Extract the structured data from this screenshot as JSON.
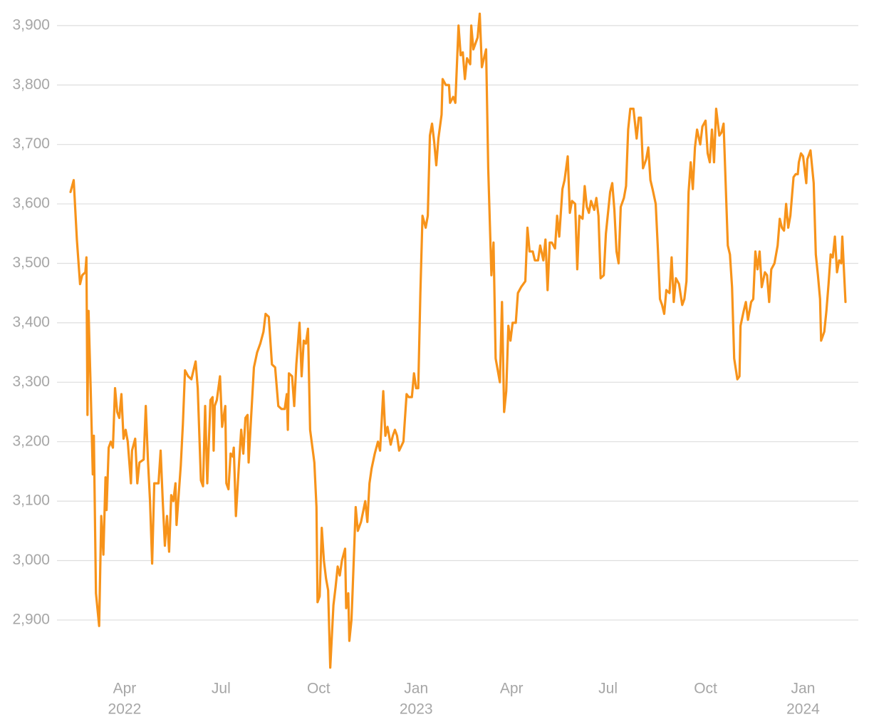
{
  "chart_data": {
    "type": "line",
    "color": "#f7931a",
    "grid": true,
    "ylim": [
      2810,
      3925
    ],
    "yticks": [
      {
        "value": 2900,
        "label": "2,900"
      },
      {
        "value": 3000,
        "label": "3,000"
      },
      {
        "value": 3100,
        "label": "3,100"
      },
      {
        "value": 3200,
        "label": "3,200"
      },
      {
        "value": 3300,
        "label": "3,300"
      },
      {
        "value": 3400,
        "label": "3,400"
      },
      {
        "value": 3500,
        "label": "3,500"
      },
      {
        "value": 3600,
        "label": "3,600"
      },
      {
        "value": 3700,
        "label": "3,700"
      },
      {
        "value": 3800,
        "label": "3,800"
      },
      {
        "value": 3900,
        "label": "3,900"
      }
    ],
    "xlim": [
      "2022-02-09",
      "2024-02-10"
    ],
    "xticks": [
      {
        "value": "2022-04-01",
        "label": "Apr",
        "year": "2022"
      },
      {
        "value": "2022-07-01",
        "label": "Jul"
      },
      {
        "value": "2022-10-01",
        "label": "Oct"
      },
      {
        "value": "2023-01-01",
        "label": "Jan",
        "year": "2023"
      },
      {
        "value": "2023-04-01",
        "label": "Apr"
      },
      {
        "value": "2023-07-01",
        "label": "Jul"
      },
      {
        "value": "2023-10-01",
        "label": "Oct"
      },
      {
        "value": "2024-01-01",
        "label": "Jan",
        "year": "2024"
      }
    ],
    "x": [
      "2022-02-09",
      "2022-02-12",
      "2022-02-15",
      "2022-02-18",
      "2022-02-20",
      "2022-02-23",
      "2022-02-24",
      "2022-02-25",
      "2022-02-26",
      "2022-02-28",
      "2022-03-02",
      "2022-03-03",
      "2022-03-05",
      "2022-03-08",
      "2022-03-10",
      "2022-03-12",
      "2022-03-14",
      "2022-03-15",
      "2022-03-17",
      "2022-03-19",
      "2022-03-21",
      "2022-03-23",
      "2022-03-25",
      "2022-03-27",
      "2022-03-29",
      "2022-03-31",
      "2022-04-02",
      "2022-04-04",
      "2022-04-07",
      "2022-04-08",
      "2022-04-11",
      "2022-04-13",
      "2022-04-15",
      "2022-04-19",
      "2022-04-21",
      "2022-04-23",
      "2022-04-25",
      "2022-04-27",
      "2022-04-29",
      "2022-05-03",
      "2022-05-05",
      "2022-05-07",
      "2022-05-09",
      "2022-05-11",
      "2022-05-13",
      "2022-05-15",
      "2022-05-17",
      "2022-05-19",
      "2022-05-20",
      "2022-05-24",
      "2022-05-26",
      "2022-05-28",
      "2022-05-31",
      "2022-06-03",
      "2022-06-07",
      "2022-06-09",
      "2022-06-12",
      "2022-06-14",
      "2022-06-16",
      "2022-06-18",
      "2022-06-21",
      "2022-06-23",
      "2022-06-24",
      "2022-06-25",
      "2022-06-27",
      "2022-06-30",
      "2022-07-02",
      "2022-07-05",
      "2022-07-06",
      "2022-07-08",
      "2022-07-10",
      "2022-07-12",
      "2022-07-13",
      "2022-07-15",
      "2022-07-18",
      "2022-07-20",
      "2022-07-22",
      "2022-07-24",
      "2022-07-26",
      "2022-07-27",
      "2022-07-29",
      "2022-08-01",
      "2022-08-04",
      "2022-08-07",
      "2022-08-10",
      "2022-08-12",
      "2022-08-15",
      "2022-08-18",
      "2022-08-21",
      "2022-08-24",
      "2022-08-27",
      "2022-08-30",
      "2022-09-01",
      "2022-09-02",
      "2022-09-03",
      "2022-09-06",
      "2022-09-08",
      "2022-09-10",
      "2022-09-13",
      "2022-09-15",
      "2022-09-17",
      "2022-09-19",
      "2022-09-21",
      "2022-09-23",
      "2022-09-27",
      "2022-09-29",
      "2022-09-30",
      "2022-10-02",
      "2022-10-04",
      "2022-10-06",
      "2022-10-08",
      "2022-10-10",
      "2022-10-12",
      "2022-10-15",
      "2022-10-17",
      "2022-10-19",
      "2022-10-21",
      "2022-10-23",
      "2022-10-26",
      "2022-10-27",
      "2022-10-29",
      "2022-10-30",
      "2022-11-01",
      "2022-11-02",
      "2022-11-05",
      "2022-11-07",
      "2022-11-10",
      "2022-11-14",
      "2022-11-16",
      "2022-11-18",
      "2022-11-20",
      "2022-11-23",
      "2022-11-26",
      "2022-11-28",
      "2022-12-01",
      "2022-12-03",
      "2022-12-05",
      "2022-12-08",
      "2022-12-10",
      "2022-12-12",
      "2022-12-14",
      "2022-12-16",
      "2022-12-20",
      "2022-12-23",
      "2022-12-25",
      "2022-12-28",
      "2022-12-30",
      "2023-01-01",
      "2023-01-03",
      "2023-01-05",
      "2023-01-07",
      "2023-01-10",
      "2023-01-12",
      "2023-01-14",
      "2023-01-16",
      "2023-01-18",
      "2023-01-20",
      "2023-01-22",
      "2023-01-25",
      "2023-01-26",
      "2023-01-29",
      "2023-02-01",
      "2023-02-02",
      "2023-02-05",
      "2023-02-07",
      "2023-02-10",
      "2023-02-12",
      "2023-02-14",
      "2023-02-16",
      "2023-02-18",
      "2023-02-21",
      "2023-02-22",
      "2023-02-24",
      "2023-02-28",
      "2023-03-02",
      "2023-03-04",
      "2023-03-08",
      "2023-03-10",
      "2023-03-13",
      "2023-03-15",
      "2023-03-17",
      "2023-03-19",
      "2023-03-21",
      "2023-03-23",
      "2023-03-25",
      "2023-03-27",
      "2023-03-29",
      "2023-03-31",
      "2023-04-02",
      "2023-04-05",
      "2023-04-07",
      "2023-04-10",
      "2023-04-14",
      "2023-04-16",
      "2023-04-18",
      "2023-04-21",
      "2023-04-23",
      "2023-04-26",
      "2023-04-28",
      "2023-05-01",
      "2023-05-03",
      "2023-05-05",
      "2023-05-07",
      "2023-05-09",
      "2023-05-12",
      "2023-05-14",
      "2023-05-16",
      "2023-05-19",
      "2023-05-21",
      "2023-05-24",
      "2023-05-26",
      "2023-05-28",
      "2023-05-31",
      "2023-06-02",
      "2023-06-04",
      "2023-06-07",
      "2023-06-09",
      "2023-06-11",
      "2023-06-13",
      "2023-06-15",
      "2023-06-18",
      "2023-06-20",
      "2023-06-22",
      "2023-06-24",
      "2023-06-27",
      "2023-06-29",
      "2023-07-03",
      "2023-07-05",
      "2023-07-07",
      "2023-07-09",
      "2023-07-11",
      "2023-07-13",
      "2023-07-16",
      "2023-07-18",
      "2023-07-20",
      "2023-07-22",
      "2023-07-25",
      "2023-07-28",
      "2023-07-30",
      "2023-08-01",
      "2023-08-03",
      "2023-08-06",
      "2023-08-08",
      "2023-08-10",
      "2023-08-12",
      "2023-08-15",
      "2023-08-17",
      "2023-08-19",
      "2023-08-21",
      "2023-08-23",
      "2023-08-25",
      "2023-08-28",
      "2023-08-30",
      "2023-09-01",
      "2023-09-03",
      "2023-09-06",
      "2023-09-09",
      "2023-09-11",
      "2023-09-13",
      "2023-09-15",
      "2023-09-17",
      "2023-09-19",
      "2023-09-21",
      "2023-09-23",
      "2023-09-26",
      "2023-09-28",
      "2023-10-01",
      "2023-10-03",
      "2023-10-05",
      "2023-10-07",
      "2023-10-09",
      "2023-10-11",
      "2023-10-14",
      "2023-10-16",
      "2023-10-18",
      "2023-10-22",
      "2023-10-24",
      "2023-10-26",
      "2023-10-28",
      "2023-10-31",
      "2023-11-02",
      "2023-11-03",
      "2023-11-06",
      "2023-11-08",
      "2023-11-10",
      "2023-11-13",
      "2023-11-15",
      "2023-11-17",
      "2023-11-19",
      "2023-11-21",
      "2023-11-23",
      "2023-11-26",
      "2023-11-28",
      "2023-11-30",
      "2023-12-02",
      "2023-12-05",
      "2023-12-08",
      "2023-12-10",
      "2023-12-12",
      "2023-12-14",
      "2023-12-16",
      "2023-12-18",
      "2023-12-20",
      "2023-12-23",
      "2023-12-25",
      "2023-12-27",
      "2023-12-28",
      "2023-12-30",
      "2024-01-01",
      "2024-01-04",
      "2024-01-05",
      "2024-01-08",
      "2024-01-11",
      "2024-01-13",
      "2024-01-15",
      "2024-01-17",
      "2024-01-18",
      "2024-01-21",
      "2024-01-23",
      "2024-01-25",
      "2024-01-27",
      "2024-01-29",
      "2024-01-31",
      "2024-02-02",
      "2024-02-04",
      "2024-02-06",
      "2024-02-07",
      "2024-02-10"
    ],
    "values": [
      3620,
      3640,
      3540,
      3465,
      3480,
      3485,
      3510,
      3245,
      3420,
      3290,
      3145,
      3210,
      2945,
      2890,
      3075,
      3010,
      3140,
      3085,
      3190,
      3200,
      3190,
      3290,
      3250,
      3240,
      3280,
      3205,
      3220,
      3200,
      3130,
      3185,
      3205,
      3130,
      3165,
      3170,
      3260,
      3170,
      3100,
      2995,
      3130,
      3130,
      3185,
      3100,
      3025,
      3075,
      3015,
      3110,
      3100,
      3130,
      3060,
      3160,
      3230,
      3320,
      3310,
      3305,
      3335,
      3290,
      3135,
      3125,
      3260,
      3130,
      3270,
      3275,
      3185,
      3260,
      3270,
      3310,
      3225,
      3260,
      3130,
      3120,
      3180,
      3175,
      3190,
      3075,
      3165,
      3220,
      3180,
      3240,
      3245,
      3165,
      3230,
      3325,
      3350,
      3365,
      3385,
      3415,
      3410,
      3330,
      3325,
      3260,
      3255,
      3255,
      3280,
      3220,
      3315,
      3310,
      3260,
      3330,
      3400,
      3310,
      3370,
      3365,
      3390,
      3220,
      3165,
      3090,
      2930,
      2940,
      3055,
      3000,
      2970,
      2950,
      2820,
      2925,
      2955,
      2990,
      2975,
      3000,
      3020,
      2920,
      2945,
      2865,
      2900,
      2945,
      3090,
      3050,
      3065,
      3100,
      3065,
      3130,
      3155,
      3180,
      3200,
      3185,
      3285,
      3210,
      3225,
      3195,
      3210,
      3220,
      3210,
      3185,
      3200,
      3280,
      3275,
      3275,
      3315,
      3290,
      3290,
      3450,
      3580,
      3560,
      3580,
      3715,
      3735,
      3705,
      3665,
      3710,
      3750,
      3810,
      3800,
      3800,
      3770,
      3780,
      3770,
      3900,
      3850,
      3855,
      3810,
      3845,
      3835,
      3900,
      3860,
      3880,
      3920,
      3830,
      3860,
      3660,
      3480,
      3535,
      3340,
      3320,
      3300,
      3435,
      3250,
      3285,
      3395,
      3370,
      3400,
      3400,
      3450,
      3460,
      3470,
      3560,
      3520,
      3520,
      3505,
      3505,
      3530,
      3505,
      3540,
      3455,
      3535,
      3535,
      3525,
      3580,
      3545,
      3625,
      3640,
      3680,
      3585,
      3605,
      3600,
      3490,
      3580,
      3575,
      3630,
      3595,
      3585,
      3605,
      3590,
      3610,
      3580,
      3475,
      3480,
      3550,
      3620,
      3635,
      3590,
      3520,
      3500,
      3595,
      3610,
      3630,
      3725,
      3760,
      3760,
      3710,
      3745,
      3745,
      3660,
      3675,
      3695,
      3640,
      3625,
      3600,
      3525,
      3440,
      3430,
      3415,
      3455,
      3450,
      3510,
      3435,
      3475,
      3465,
      3430,
      3440,
      3470,
      3620,
      3670,
      3625,
      3695,
      3725,
      3700,
      3730,
      3740,
      3685,
      3670,
      3725,
      3670,
      3760,
      3715,
      3720,
      3735,
      3530,
      3515,
      3460,
      3340,
      3305,
      3310,
      3395,
      3420,
      3435,
      3405,
      3435,
      3440,
      3520,
      3490,
      3520,
      3460,
      3485,
      3480,
      3435,
      3490,
      3500,
      3530,
      3575,
      3560,
      3555,
      3600,
      3560,
      3580,
      3645,
      3650,
      3650,
      3670,
      3685,
      3680,
      3635,
      3675,
      3690,
      3635,
      3515,
      3480,
      3440,
      3370,
      3385,
      3420,
      3465,
      3515,
      3510,
      3545,
      3485,
      3505,
      3500,
      3545,
      3435
    ]
  }
}
